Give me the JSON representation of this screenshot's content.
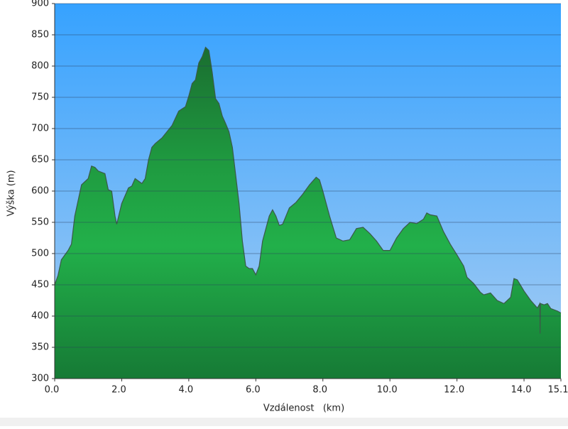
{
  "chart_data": {
    "type": "area",
    "x_label": "Vzdálenost   (km)",
    "y_label": "Výška (m)",
    "x": [
      0.0,
      0.1,
      0.2,
      0.4,
      0.5,
      0.6,
      0.8,
      1.0,
      1.1,
      1.2,
      1.3,
      1.5,
      1.6,
      1.7,
      1.8,
      1.85,
      2.0,
      2.2,
      2.3,
      2.4,
      2.5,
      2.6,
      2.7,
      2.8,
      2.9,
      3.0,
      3.2,
      3.5,
      3.7,
      3.9,
      4.0,
      4.1,
      4.2,
      4.3,
      4.4,
      4.5,
      4.6,
      4.7,
      4.8,
      4.9,
      5.0,
      5.1,
      5.2,
      5.3,
      5.4,
      5.5,
      5.6,
      5.7,
      5.8,
      5.9,
      6.0,
      6.1,
      6.2,
      6.3,
      6.4,
      6.5,
      6.6,
      6.7,
      6.8,
      6.9,
      7.0,
      7.2,
      7.4,
      7.6,
      7.8,
      7.9,
      8.0,
      8.2,
      8.4,
      8.6,
      8.8,
      9.0,
      9.2,
      9.4,
      9.6,
      9.8,
      10.0,
      10.2,
      10.4,
      10.6,
      10.8,
      11.0,
      11.1,
      11.2,
      11.4,
      11.6,
      11.8,
      12.0,
      12.2,
      12.3,
      12.5,
      12.7,
      12.8,
      13.0,
      13.2,
      13.4,
      13.6,
      13.7,
      13.8,
      14.0,
      14.2,
      14.4,
      14.47,
      14.48,
      14.49,
      14.6,
      14.7,
      14.8,
      15.0,
      15.1
    ],
    "values": [
      450,
      465,
      490,
      505,
      515,
      560,
      610,
      620,
      640,
      638,
      632,
      628,
      602,
      600,
      560,
      547,
      580,
      605,
      608,
      620,
      616,
      612,
      620,
      650,
      670,
      676,
      685,
      705,
      728,
      735,
      752,
      772,
      778,
      805,
      815,
      830,
      825,
      790,
      748,
      740,
      720,
      708,
      695,
      670,
      625,
      580,
      520,
      480,
      476,
      476,
      466,
      480,
      520,
      540,
      560,
      570,
      560,
      545,
      547,
      560,
      573,
      582,
      595,
      610,
      622,
      618,
      600,
      560,
      525,
      520,
      522,
      540,
      542,
      532,
      520,
      505,
      505,
      525,
      540,
      550,
      548,
      555,
      565,
      562,
      560,
      535,
      515,
      498,
      480,
      462,
      452,
      438,
      434,
      437,
      425,
      420,
      430,
      460,
      458,
      440,
      425,
      413,
      420,
      372,
      420,
      418,
      420,
      412,
      408,
      405
    ],
    "xlim": [
      0,
      15.1
    ],
    "ylim": [
      300,
      900
    ],
    "xticks": [
      {
        "value": 0,
        "label": "0.0"
      },
      {
        "value": 2,
        "label": "2.0"
      },
      {
        "value": 4,
        "label": "4.0"
      },
      {
        "value": 6,
        "label": "6.0"
      },
      {
        "value": 8,
        "label": "8.0"
      },
      {
        "value": 10,
        "label": "10.0"
      },
      {
        "value": 12,
        "label": "12.0"
      },
      {
        "value": 14,
        "label": "14.0"
      },
      15.1
    ],
    "yticks": [
      300,
      350,
      400,
      450,
      500,
      550,
      600,
      650,
      700,
      750,
      800,
      850,
      900
    ],
    "grid": true
  }
}
